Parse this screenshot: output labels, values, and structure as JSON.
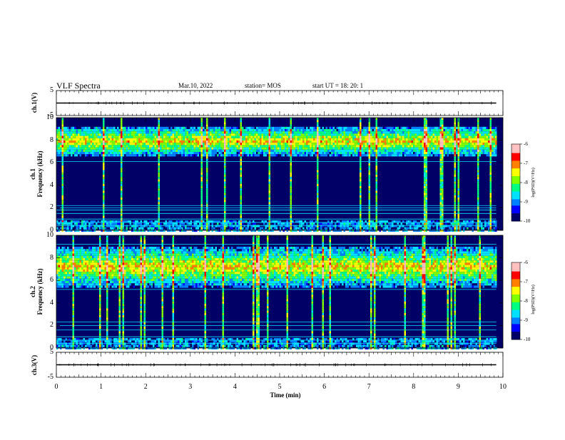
{
  "header": {
    "title": "VLF Spectra",
    "date": "Mar.10, 2022",
    "station": "station= MOS",
    "start": "start  UT  =   18: 20: 1"
  },
  "panels": {
    "ch1_label": "ch.1(V)",
    "ch3_label": "ch.3(V)",
    "spec1_label_a": "ch.1",
    "spec1_label_b": "Frequency  (kHz)",
    "spec2_label_a": "ch.2",
    "spec2_label_b": "Frequency  (kHz)",
    "colorbar_label": "log(PSD)(V²/Hz)"
  },
  "colors": {
    "scale": [
      "#000066",
      "#0000ff",
      "#0080ff",
      "#00e0ff",
      "#00ff80",
      "#80ff00",
      "#ffff00",
      "#ff8000",
      "#ff0000",
      "#ffc0c0"
    ],
    "background": "#ffffff"
  },
  "chart_data": {
    "type": "heatmap",
    "title": "VLF Spectra",
    "xlabel": "Time  (min)",
    "x_ticks": [
      "0",
      "1",
      "2",
      "3",
      "4",
      "5",
      "6",
      "7",
      "8",
      "9",
      "10"
    ],
    "xlim": [
      0,
      10
    ],
    "waveforms": [
      {
        "name": "ch.1(V)",
        "ylim": [
          -5,
          5
        ],
        "y_ticks": [
          "5",
          "-5"
        ],
        "level": 0
      },
      {
        "name": "ch.3(V)",
        "ylim": [
          -5,
          5
        ],
        "y_ticks": [
          "5",
          "-5"
        ],
        "level": 0
      }
    ],
    "spectrograms": [
      {
        "name": "ch.1",
        "ylabel": "Frequency  (kHz)",
        "ylim": [
          0,
          10
        ],
        "y_ticks": [
          "0",
          "2",
          "4",
          "6",
          "8",
          "10"
        ],
        "band_center_khz": 8,
        "band_halfwidth_khz": 1.3,
        "lines_khz": [
          0.4,
          0.7,
          1.0,
          1.5,
          1.8,
          2.0,
          2.2,
          6.1
        ],
        "data_end_min": 9.85
      },
      {
        "name": "ch.2",
        "ylabel": "Frequency  (kHz)",
        "ylim": [
          0,
          10
        ],
        "y_ticks": [
          "0",
          "2",
          "4",
          "6",
          "8",
          "10"
        ],
        "band_center_khz": 7.3,
        "band_halfwidth_khz": 1.8,
        "lines_khz": [
          0.4,
          0.7,
          1.0,
          1.6,
          2.0,
          2.3,
          5.2,
          9.2
        ],
        "data_end_min": 9.85
      }
    ],
    "colorbar": {
      "label": "log(PSD)(V²/Hz)",
      "range": [
        -10,
        -6
      ],
      "ticks": [
        "-6",
        "-7",
        "-8",
        "-9",
        "-10"
      ]
    }
  }
}
